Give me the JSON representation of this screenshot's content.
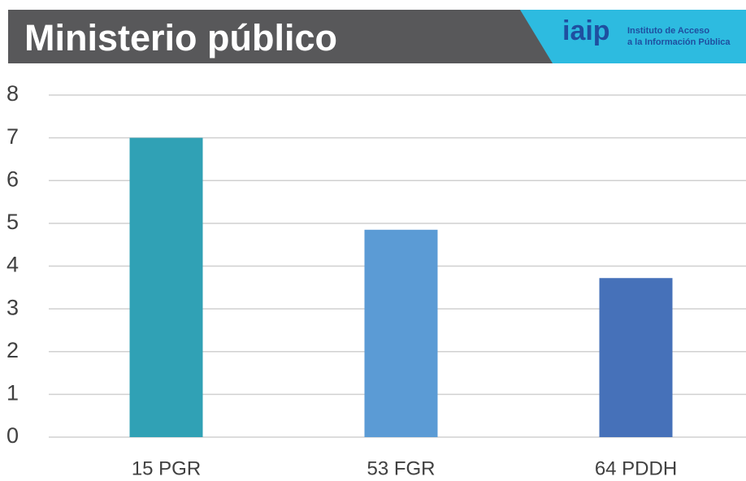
{
  "chart_data": {
    "type": "bar",
    "title": "Ministerio público",
    "categories": [
      "15 PGR",
      "53 FGR",
      "64 PDDH"
    ],
    "values": [
      7,
      4.85,
      3.72
    ],
    "colors": [
      "#30a1b5",
      "#5b9bd5",
      "#4671b9"
    ],
    "ylim": [
      0,
      8
    ],
    "yticks": [
      0,
      1,
      2,
      3,
      4,
      5,
      6,
      7,
      8
    ],
    "grid": true
  },
  "logo": {
    "mark": "iaip",
    "lines": [
      "Instituto de Acceso",
      "a la Información Pública"
    ]
  }
}
